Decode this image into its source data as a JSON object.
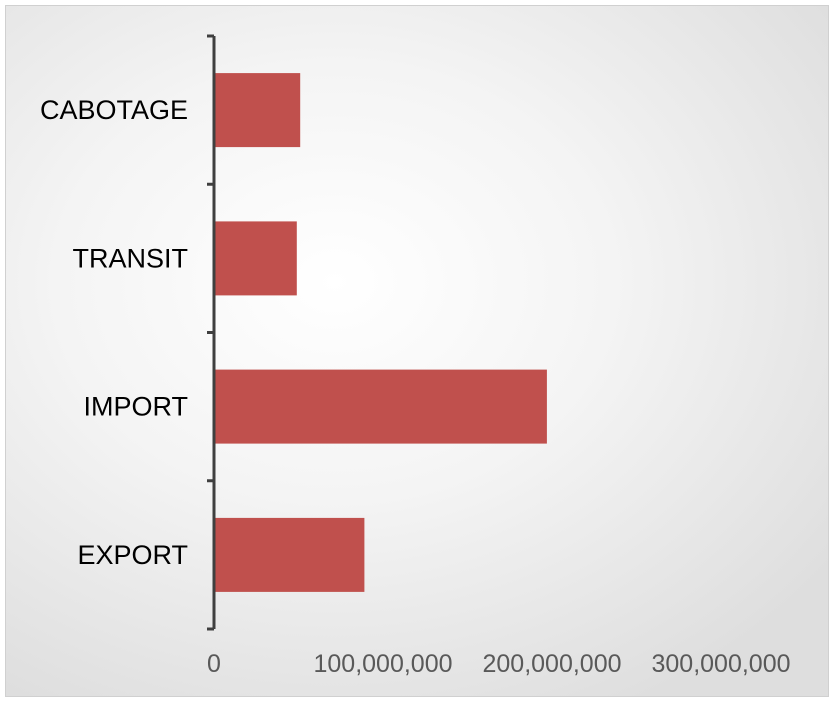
{
  "chart_data": {
    "type": "bar",
    "orientation": "horizontal",
    "categories": [
      "CABOTAGE",
      "TRANSIT",
      "IMPORT",
      "EXPORT"
    ],
    "values": [
      51000000,
      49000000,
      197000000,
      89000000
    ],
    "xlim": [
      0,
      360000000
    ],
    "x_ticks": [
      0,
      100000000,
      200000000,
      300000000
    ],
    "x_tick_labels": [
      "0",
      "100,000,000",
      "200,000,000",
      "300,000,000"
    ],
    "bar_color": "#c0504d",
    "axis_color": "#3f3f3f",
    "grid": false,
    "legend": "none",
    "title": "",
    "xlabel": "",
    "ylabel": ""
  }
}
